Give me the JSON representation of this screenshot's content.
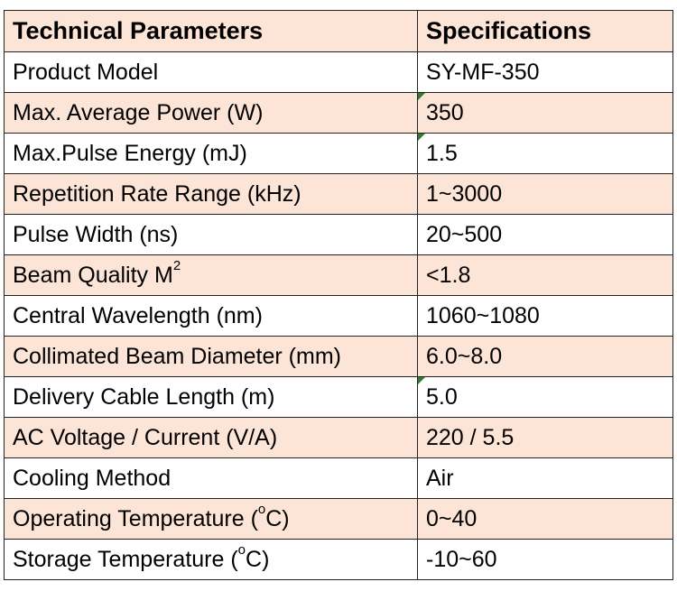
{
  "header": {
    "col1": "Technical Parameters",
    "col2": "Specifications"
  },
  "rows": [
    {
      "param": "Product Model",
      "value": "SY-MF-350"
    },
    {
      "param": "Max. Average Power (W)",
      "value": "350"
    },
    {
      "param": "Max.Pulse Energy (mJ)",
      "value": "1.5"
    },
    {
      "param": "Repetition Rate Range (kHz)",
      "value": "1~3000"
    },
    {
      "param": "Pulse Width (ns)",
      "value": "20~500"
    },
    {
      "param": "Beam Quality M",
      "param_sup": "2",
      "value": "<1.8"
    },
    {
      "param": "Central Wavelength (nm)",
      "value": "1060~1080"
    },
    {
      "param": "Collimated Beam Diameter (mm)",
      "value": "6.0~8.0"
    },
    {
      "param": "Delivery Cable Length (m)",
      "value": "5.0"
    },
    {
      "param": "AC Voltage / Current (V/A)",
      "value": "220 / 5.5"
    },
    {
      "param": "Cooling Method",
      "value": "Air"
    },
    {
      "param": "Operating Temperature (",
      "param_sup": "o",
      "param_after": "C)",
      "value": "0~40"
    },
    {
      "param": "Storage Temperature (",
      "param_sup": "o",
      "param_after": "C)",
      "value": "-10~60"
    }
  ],
  "colors": {
    "header_bg": "#fce4d6",
    "stripe_bg": "#fce4d6",
    "border": "#222222",
    "comment_marker": "#2e7d32"
  }
}
